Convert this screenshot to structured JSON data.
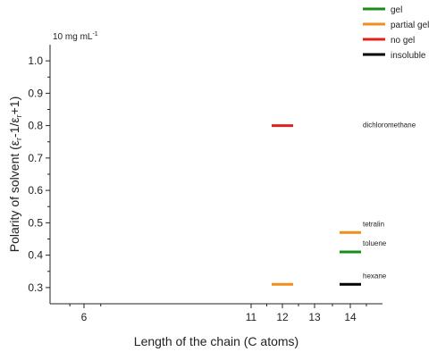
{
  "chart_data": {
    "type": "scatter",
    "concentration_label": "10 mg mL",
    "concentration_exp": "-1",
    "xlabel": "Length of the chain (C atoms)",
    "ylabel_parts": [
      "Polarity of solvent (ε",
      "r",
      "-1/ε",
      "r",
      "+1)"
    ],
    "xlim": [
      4.8,
      15
    ],
    "ylim": [
      0.25,
      1.05
    ],
    "xticks": [
      6,
      11,
      12,
      13,
      14
    ],
    "xtick_labels": [
      "6",
      "11",
      "12",
      "13",
      "14"
    ],
    "xaxis_break": [
      6.8,
      10.6
    ],
    "yticks": [
      0.3,
      0.4,
      0.5,
      0.6,
      0.7,
      0.8,
      0.9,
      1.0
    ],
    "ytick_labels": [
      "0.3",
      "0.4",
      "0.5",
      "0.6",
      "0.7",
      "0.8",
      "0.9",
      "1.0"
    ],
    "legend_position": "top-right, outside plot",
    "legend": [
      {
        "label": "gel",
        "color": "#1a8c1a"
      },
      {
        "label": "partial gel",
        "color": "#f28c1c"
      },
      {
        "label": "no gel",
        "color": "#e0201a"
      },
      {
        "label": "insoluble",
        "color": "#000000"
      }
    ],
    "points": [
      {
        "x": 12,
        "y": 0.8,
        "state": "no gel",
        "color": "#e0201a"
      },
      {
        "x": 12,
        "y": 0.31,
        "state": "partial gel",
        "color": "#f28c1c"
      },
      {
        "x": 14,
        "y": 0.47,
        "state": "partial gel",
        "color": "#f28c1c"
      },
      {
        "x": 14,
        "y": 0.41,
        "state": "gel",
        "color": "#1a8c1a"
      },
      {
        "x": 14,
        "y": 0.31,
        "state": "insoluble",
        "color": "#000000"
      }
    ],
    "annotations": [
      {
        "text": "dichloromethane",
        "y": 0.8
      },
      {
        "text": "tetralin",
        "y": 0.47
      },
      {
        "text": "toluene",
        "y": 0.41
      },
      {
        "text": "hexane",
        "y": 0.31
      }
    ]
  }
}
